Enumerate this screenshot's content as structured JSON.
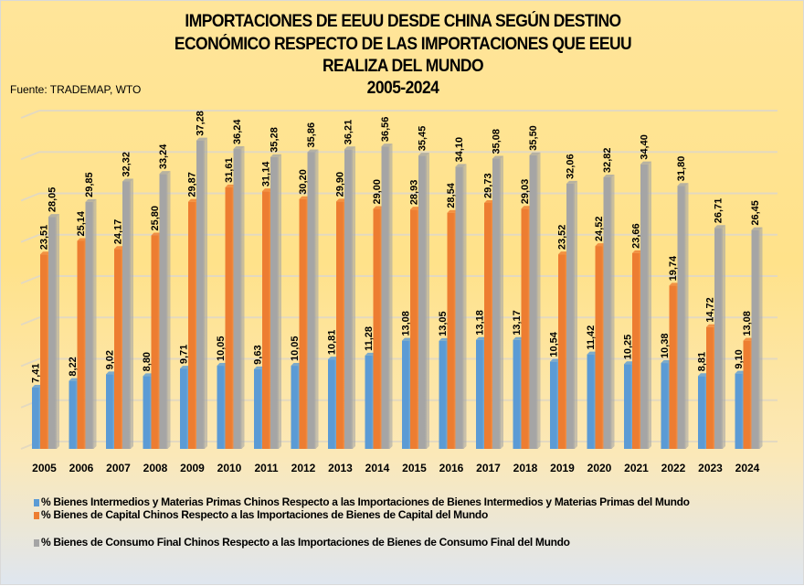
{
  "chart_data": {
    "type": "bar",
    "title": [
      "IMPORTACIONES DE EEUU DESDE CHINA SEGÚN DESTINO",
      "ECONÓMICO RESPECTO DE LAS IMPORTACIONES QUE EEUU",
      "REALIZA DEL MUNDO",
      "2005-2024"
    ],
    "source": "Fuente: TRADEMAP, WTO",
    "xlabel": "",
    "ylabel": "",
    "ylim": [
      0,
      40
    ],
    "y_gridline_step": 5,
    "y_axis_labels_visible": false,
    "grid": true,
    "legend_position": "bottom",
    "categories": [
      "2005",
      "2006",
      "2007",
      "2008",
      "2009",
      "2010",
      "2011",
      "2012",
      "2013",
      "2014",
      "2015",
      "2016",
      "2017",
      "2018",
      "2019",
      "2020",
      "2021",
      "2022",
      "2023",
      "2024"
    ],
    "series": [
      {
        "name": "% Bienes Intermedios y Materias Primas Chinos Respecto a las Importaciones de Bienes Intermedios y Materias Primas del Mundo",
        "color": "#5b9bd5",
        "values": [
          7.41,
          8.22,
          9.02,
          8.8,
          9.71,
          10.05,
          9.63,
          10.05,
          10.81,
          11.28,
          13.08,
          13.05,
          13.18,
          13.17,
          10.54,
          11.42,
          10.25,
          10.38,
          8.81,
          9.1
        ],
        "labels": [
          "7,41",
          "8,22",
          "9,02",
          "8,80",
          "9,71",
          "10,05",
          "9,63",
          "10,05",
          "10,81",
          "11,28",
          "13,08",
          "13,05",
          "13,18",
          "13,17",
          "10,54",
          "11,42",
          "10,25",
          "10,38",
          "8,81",
          "9,10"
        ]
      },
      {
        "name": "% Bienes de Capital Chinos Respecto a las Importaciones de Bienes de Capital del Mundo",
        "color": "#ed7d31",
        "values": [
          23.51,
          25.14,
          24.17,
          25.8,
          29.87,
          31.61,
          31.14,
          30.2,
          29.9,
          29.0,
          28.93,
          28.54,
          29.73,
          29.03,
          23.52,
          24.52,
          23.66,
          19.74,
          14.72,
          13.08
        ],
        "labels": [
          "23,51",
          "25,14",
          "24,17",
          "25,80",
          "29,87",
          "31,61",
          "31,14",
          "30,20",
          "29,90",
          "29,00",
          "28,93",
          "28,54",
          "29,73",
          "29,03",
          "23,52",
          "24,52",
          "23,66",
          "19,74",
          "14,72",
          "13,08"
        ]
      },
      {
        "name": "% Bienes de Consumo Final Chinos Respecto a las Importaciones de Bienes de Consumo Final del Mundo",
        "color": "#a5a5a5",
        "values": [
          28.05,
          29.85,
          32.32,
          33.24,
          37.28,
          36.24,
          35.28,
          35.86,
          36.21,
          36.56,
          35.45,
          34.1,
          35.08,
          35.5,
          32.06,
          32.82,
          34.4,
          31.8,
          26.71,
          26.45
        ],
        "labels": [
          "28,05",
          "29,85",
          "32,32",
          "33,24",
          "37,28",
          "36,24",
          "35,28",
          "35,86",
          "36,21",
          "36,56",
          "35,45",
          "34,10",
          "35,08",
          "35,50",
          "32,06",
          "32,82",
          "34,40",
          "31,80",
          "26,71",
          "26,45"
        ]
      }
    ]
  }
}
